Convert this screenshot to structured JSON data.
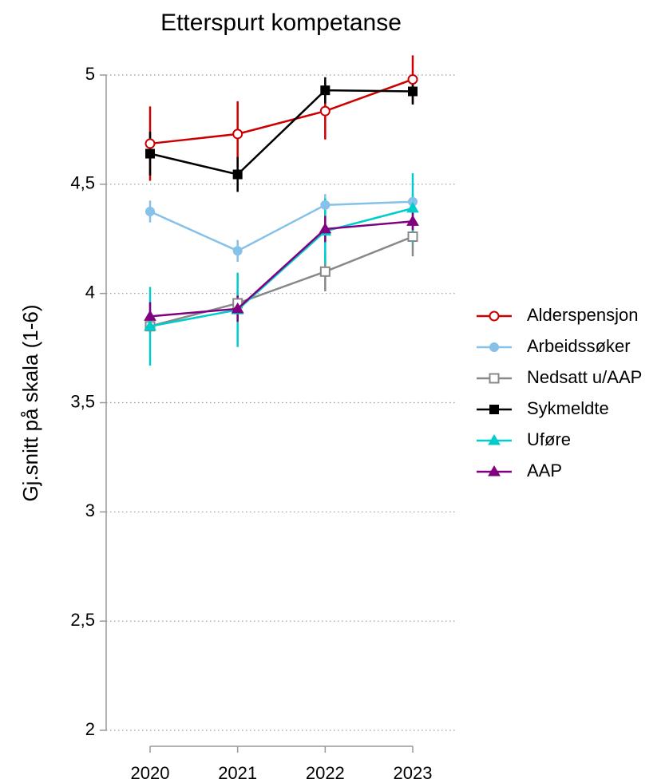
{
  "chart_data": {
    "type": "line",
    "title": "Etterspurt kompetanse",
    "y_label": "Gj.snitt på skala (1-6)",
    "x": [
      2020,
      2021,
      2022,
      2023
    ],
    "xlim": [
      2020,
      2023
    ],
    "xticks": [
      2020,
      2021,
      2022,
      2023
    ],
    "ylim": [
      2,
      5
    ],
    "yticks": [
      2,
      {
        "value": 2.5,
        "label": "2,5"
      },
      3,
      {
        "value": 3.5,
        "label": "3,5"
      },
      4,
      {
        "value": 4.5,
        "label": "4,5"
      },
      5
    ],
    "grid": true,
    "legend": "right",
    "series": [
      {
        "name": "Alderspensjon",
        "color": "#cc0000",
        "marker": "circle-open",
        "values": [
          4.686,
          4.73,
          4.835,
          4.98
        ],
        "errors": [
          0.17,
          0.15,
          0.13,
          0.11
        ]
      },
      {
        "name": "Arbeidssøker",
        "color": "#85c1e9",
        "marker": "circle",
        "values": [
          4.375,
          4.195,
          4.405,
          4.42
        ],
        "errors": [
          0.05,
          0.05,
          0.05,
          0.04
        ]
      },
      {
        "name": "Nedsatt u/AAP",
        "color": "#888888",
        "marker": "square-open",
        "values": [
          3.85,
          3.955,
          4.1,
          4.26
        ],
        "errors": [
          0.03,
          0.05,
          0.09,
          0.09
        ]
      },
      {
        "name": "Sykmeldte",
        "color": "#000000",
        "marker": "square",
        "values": [
          4.64,
          4.545,
          4.93,
          4.925
        ],
        "errors": [
          0.1,
          0.08,
          0.06,
          0.06
        ]
      },
      {
        "name": "Uføre",
        "color": "#00cccc",
        "marker": "triangle",
        "values": [
          3.85,
          3.925,
          4.285,
          4.39
        ],
        "errors": [
          0.18,
          0.17,
          0.15,
          0.16
        ]
      },
      {
        "name": "AAP",
        "color": "#800080",
        "marker": "triangle",
        "values": [
          3.895,
          3.93,
          4.295,
          4.33
        ],
        "errors": [
          0.065,
          0.06,
          0.06,
          0.04
        ]
      }
    ]
  }
}
